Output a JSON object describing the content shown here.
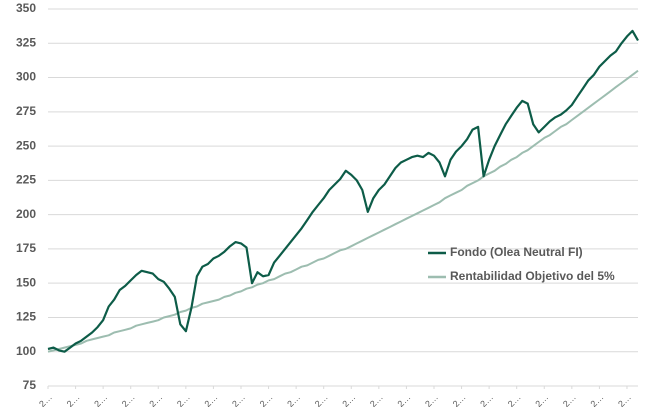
{
  "chart_data": {
    "type": "line",
    "x": [
      0,
      1,
      2,
      3,
      4,
      5,
      6,
      7,
      8,
      9,
      10,
      11,
      12,
      13,
      14,
      15,
      16,
      17,
      18,
      19,
      20,
      21,
      22,
      23,
      24,
      25,
      26,
      27,
      28,
      29,
      30,
      31,
      32,
      33,
      34,
      35,
      36,
      37,
      38,
      39,
      40,
      41,
      42,
      43,
      44,
      45,
      46,
      47,
      48,
      49,
      50,
      51,
      52,
      53,
      54,
      55,
      56,
      57,
      58,
      59,
      60,
      61,
      62,
      63,
      64,
      65,
      66,
      67,
      68,
      69,
      70,
      71,
      72,
      73,
      74,
      75,
      76,
      77,
      78,
      79,
      80,
      81,
      82,
      83,
      84,
      85,
      86,
      87,
      88,
      89,
      90,
      91,
      92,
      93,
      94,
      95,
      96,
      97,
      98,
      99,
      100,
      101,
      102,
      103,
      104,
      105,
      106,
      107
    ],
    "series": [
      {
        "name": "Fondo (Olea Neutral FI)",
        "color": "#0d5c48",
        "values": [
          102,
          103,
          101,
          100,
          103,
          106,
          108,
          111,
          114,
          118,
          123,
          133,
          138,
          145,
          148,
          152,
          156,
          159,
          158,
          157,
          153,
          151,
          146,
          140,
          120,
          115,
          132,
          155,
          162,
          164,
          168,
          170,
          173,
          177,
          180,
          179,
          176,
          150,
          158,
          155,
          156,
          165,
          170,
          175,
          180,
          185,
          190,
          196,
          202,
          207,
          212,
          218,
          222,
          226,
          232,
          229,
          225,
          218,
          202,
          212,
          218,
          222,
          228,
          234,
          238,
          240,
          242,
          243,
          242,
          245,
          243,
          238,
          228,
          240,
          246,
          250,
          255,
          262,
          264,
          228,
          240,
          250,
          258,
          266,
          272,
          278,
          283,
          281,
          266,
          260,
          264,
          268,
          271,
          273,
          276,
          280,
          286,
          292,
          298,
          302,
          308,
          312,
          316,
          319,
          325,
          330,
          334,
          327
        ]
      },
      {
        "name": "Rentabilidad Objetivo del 5%",
        "color": "#9dbdb0",
        "values": [
          100,
          101,
          102,
          103,
          104,
          105,
          106,
          108,
          109,
          110,
          111,
          112,
          114,
          115,
          116,
          117,
          119,
          120,
          121,
          122,
          123,
          125,
          126,
          127,
          129,
          130,
          132,
          133,
          135,
          136,
          137,
          138,
          140,
          141,
          143,
          144,
          146,
          147,
          149,
          150,
          152,
          153,
          155,
          157,
          158,
          160,
          162,
          163,
          165,
          167,
          168,
          170,
          172,
          174,
          175,
          177,
          179,
          181,
          183,
          185,
          187,
          189,
          191,
          193,
          195,
          197,
          199,
          201,
          203,
          205,
          207,
          209,
          212,
          214,
          216,
          218,
          221,
          223,
          225,
          228,
          230,
          232,
          235,
          237,
          240,
          242,
          245,
          247,
          250,
          253,
          256,
          258,
          261,
          264,
          266,
          269,
          272,
          275,
          278,
          281,
          284,
          287,
          290,
          293,
          296,
          299,
          302,
          305
        ]
      }
    ],
    "xlim": [
      0,
      107
    ],
    "xticks": [
      {
        "value": 0,
        "label": "2…"
      },
      {
        "value": 5,
        "label": "2…"
      },
      {
        "value": 10,
        "label": "2…"
      },
      {
        "value": 15,
        "label": "2…"
      },
      {
        "value": 20,
        "label": "2…"
      },
      {
        "value": 25,
        "label": "2…"
      },
      {
        "value": 30,
        "label": "2…"
      },
      {
        "value": 35,
        "label": "2…"
      },
      {
        "value": 40,
        "label": "2…"
      },
      {
        "value": 45,
        "label": "2…"
      },
      {
        "value": 50,
        "label": "2…"
      },
      {
        "value": 55,
        "label": "2…"
      },
      {
        "value": 60,
        "label": "2…"
      },
      {
        "value": 65,
        "label": "2…"
      },
      {
        "value": 70,
        "label": "2…"
      },
      {
        "value": 75,
        "label": "2…"
      },
      {
        "value": 80,
        "label": "2…"
      },
      {
        "value": 85,
        "label": "2…"
      },
      {
        "value": 90,
        "label": "2…"
      },
      {
        "value": 95,
        "label": "2…"
      },
      {
        "value": 100,
        "label": "2…"
      },
      {
        "value": 105,
        "label": "2…"
      }
    ],
    "ylim": [
      75,
      350
    ],
    "yticks": [
      75,
      100,
      125,
      150,
      175,
      200,
      225,
      250,
      275,
      300,
      325,
      350
    ],
    "grid": true,
    "legend": "right"
  }
}
